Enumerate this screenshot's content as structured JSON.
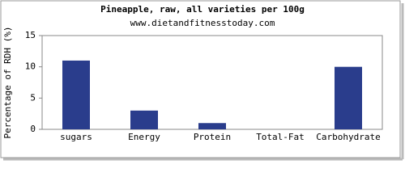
{
  "chart_data": {
    "type": "bar",
    "title": "Pineapple, raw, all varieties per 100g",
    "subtitle": "www.dietandfitnesstoday.com",
    "y_label": "Percentage of RDH (%)",
    "categories": [
      "sugars",
      "Energy",
      "Protein",
      "Total-Fat",
      "Carbohydrate"
    ],
    "values": [
      11,
      3,
      1,
      0,
      10
    ],
    "color": "#2a3d8c",
    "ylim": [
      0,
      15
    ],
    "yticks": [
      0,
      5,
      10,
      15
    ],
    "grid": false
  }
}
